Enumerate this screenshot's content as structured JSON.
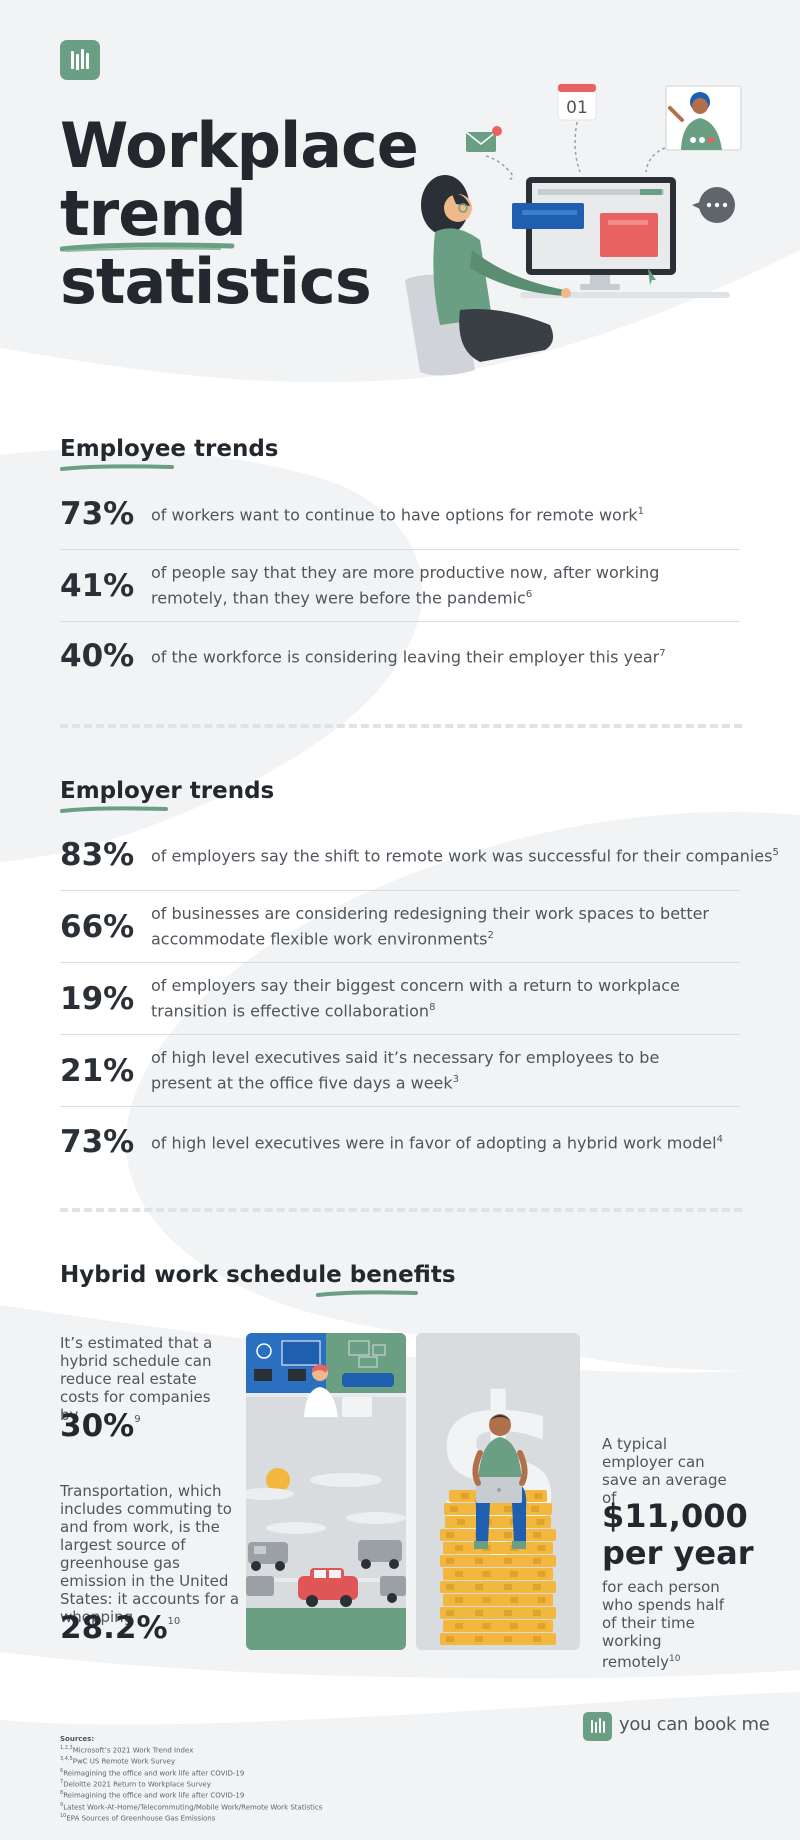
{
  "header": {
    "title_lines": [
      "Workplace",
      "trend",
      "statistics"
    ],
    "calendar_day": "01"
  },
  "employee_trends": {
    "heading": "Employee trends",
    "stats": [
      {
        "pct": "73%",
        "text": "of workers want to continue to have options for remote work",
        "ref": "1"
      },
      {
        "pct": "41%",
        "text": "of people say that they are more productive now, after working remotely, than they were before the pandemic",
        "ref": "6"
      },
      {
        "pct": "40%",
        "text": "of the workforce is considering leaving their employer this year",
        "ref": "7"
      }
    ]
  },
  "employer_trends": {
    "heading": "Employer trends",
    "stats": [
      {
        "pct": "83%",
        "text": "of employers say the shift to remote work was successful for their companies",
        "ref": "5"
      },
      {
        "pct": "66%",
        "text": "of businesses are considering redesigning their work spaces to better accommodate flexible work environments",
        "ref": "2"
      },
      {
        "pct": "19%",
        "text": "of employers say their biggest concern with a return to workplace transition is effective collaboration",
        "ref": "8"
      },
      {
        "pct": "21%",
        "text": "of high level executives said it’s necessary for employees to be present at the office five days a week",
        "ref": "3"
      },
      {
        "pct": "73%",
        "text": "of high level executives were in favor of adopting a hybrid work model",
        "ref": "4"
      }
    ]
  },
  "hybrid": {
    "heading_start": "Hybrid work schedule ",
    "heading_highlight": "benefits",
    "real_estate": {
      "text": "It’s estimated that a hybrid schedule can reduce real estate costs for companies by",
      "value": "30%",
      "ref": "9"
    },
    "transport": {
      "text": "Transportation, which includes commuting to and from work, is the largest source of greenhouse gas emission in the United States: it accounts for a whopping",
      "value": "28.2%",
      "ref": "10"
    },
    "savings": {
      "intro": "A typical employer can save an average of",
      "value_line1": "$11,000",
      "value_line2": "per year",
      "outro": "for each person who spends half of their time working remotely",
      "ref": "10"
    }
  },
  "sources": {
    "title": "Sources:",
    "items": [
      {
        "ref": "1,2,3",
        "text": "Microsoft’s 2021 Work Trend Index"
      },
      {
        "ref": "3,4,5",
        "text": "PwC US Remote Work Survey"
      },
      {
        "ref": "6",
        "text": "Reimagining the office and work life after COVID-19"
      },
      {
        "ref": "7",
        "text": "Deloitte 2021 Return to Workplace Survey"
      },
      {
        "ref": "8",
        "text": "Reimagining the office and work life after COVID-19"
      },
      {
        "ref": "9",
        "text": "Latest Work-At-Home/Telecommuting/Mobile Work/Remote Work Statistics"
      },
      {
        "ref": "10",
        "text": "EPA Sources of Greenhouse Gas Emissions"
      }
    ]
  },
  "brand": {
    "name": "you can book me"
  },
  "colors": {
    "accent_green": "#6a9f83",
    "text_dark": "#23282e",
    "text_body": "#4f555c",
    "bg_gray": "#f2f3f4",
    "coin_gold": "#f3b73e"
  }
}
